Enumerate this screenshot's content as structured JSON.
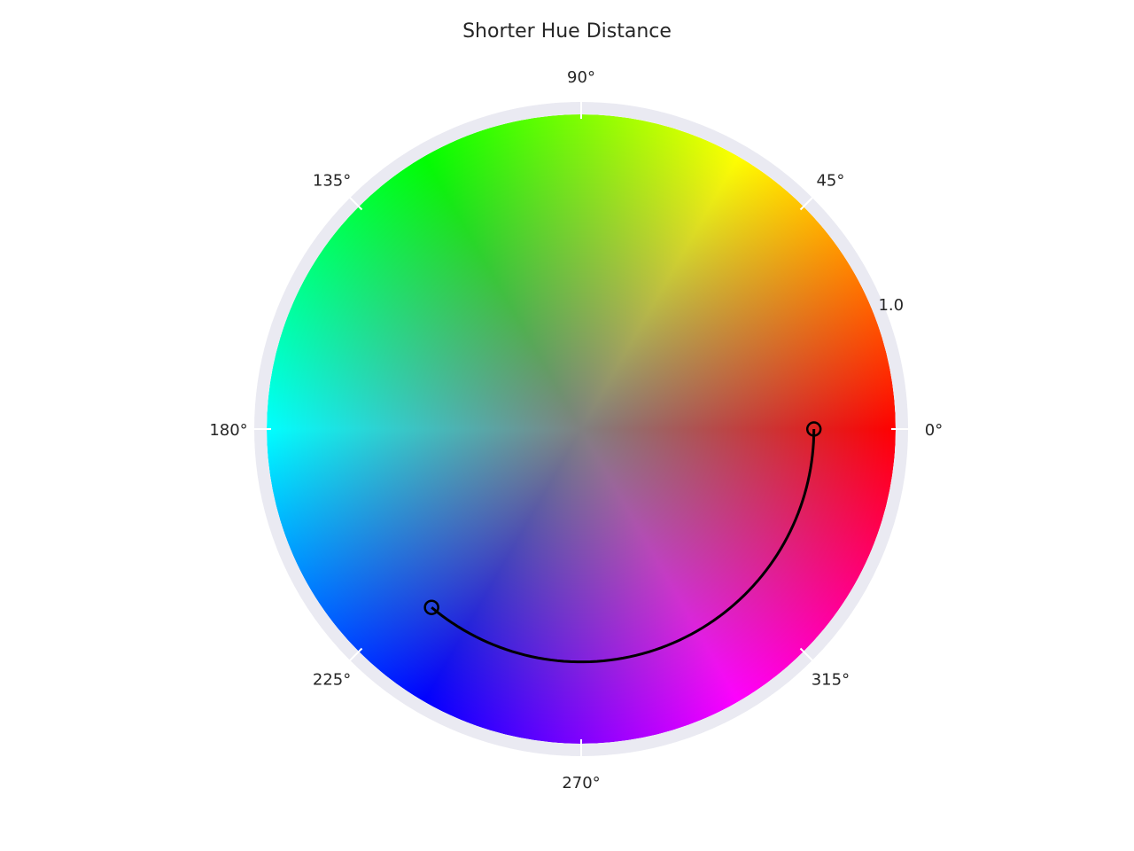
{
  "chart_data": {
    "type": "line",
    "projection": "polar",
    "title": "Shorter Hue Distance",
    "background": "hue wheel (angle = hue, radius = saturation)",
    "angle_tick_labels": [
      "0°",
      "45°",
      "90°",
      "135°",
      "180°",
      "225°",
      "270°",
      "315°"
    ],
    "angle_ticks_deg": [
      0,
      45,
      90,
      135,
      180,
      225,
      270,
      315
    ],
    "radial_tick_labels": [
      "1.0"
    ],
    "radial_ticks": [
      1.0
    ],
    "rlim": [
      0,
      1.0
    ],
    "grid": true,
    "series": [
      {
        "type": "line",
        "color": "#000000",
        "points": [
          {
            "theta_deg": 0,
            "r": 0.74
          },
          {
            "theta_deg": 270,
            "r": 0.74
          },
          {
            "theta_deg": 230,
            "r": 0.74
          }
        ],
        "path_theta_deg": [
          0,
          230
        ],
        "direction": "clockwise",
        "markers": [
          {
            "theta_deg": 0,
            "r": 0.74
          },
          {
            "theta_deg": 230,
            "r": 0.74
          }
        ]
      }
    ],
    "colors": {
      "frame": "#eaeaf2",
      "line": "#000000",
      "tick_text": "#262626"
    }
  }
}
